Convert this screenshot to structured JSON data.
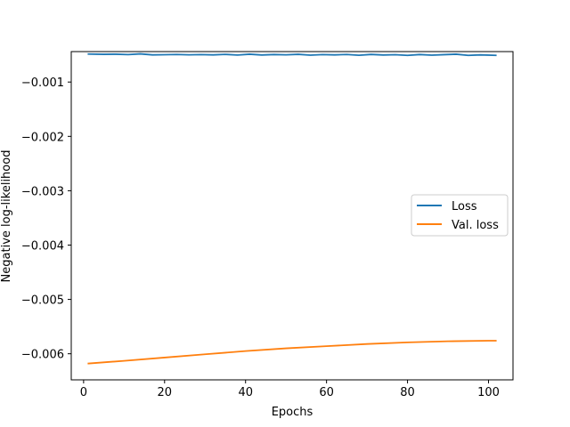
{
  "chart_data": {
    "type": "line",
    "title": "",
    "xlabel": "Epochs",
    "ylabel": "Negative log-likelihood",
    "xlim": [
      -3.05,
      106.05
    ],
    "ylim": [
      -0.00648,
      -0.00044
    ],
    "xticks": [
      0,
      20,
      40,
      60,
      80,
      100
    ],
    "yticks": [
      -0.001,
      -0.002,
      -0.003,
      -0.004,
      -0.005,
      -0.006
    ],
    "xtick_labels": [
      "0",
      "20",
      "40",
      "60",
      "80",
      "100"
    ],
    "ytick_labels": [
      "−0.001",
      "−0.002",
      "−0.003",
      "−0.004",
      "−0.005",
      "−0.006"
    ],
    "grid": false,
    "legend_position": "center-right",
    "series": [
      {
        "name": "Loss",
        "color": "#1f77b4",
        "x": [
          1,
          5,
          8,
          11,
          14,
          17,
          20,
          23,
          26,
          29,
          32,
          35,
          38,
          41,
          44,
          47,
          50,
          53,
          56,
          59,
          62,
          65,
          68,
          71,
          74,
          77,
          80,
          83,
          86,
          89,
          92,
          95,
          98,
          102
        ],
        "y": [
          -0.000485,
          -0.00049,
          -0.000488,
          -0.000495,
          -0.000482,
          -0.0005,
          -0.000497,
          -0.000493,
          -0.000499,
          -0.000495,
          -0.0005,
          -0.000491,
          -0.000503,
          -0.000488,
          -0.000502,
          -0.000494,
          -0.000499,
          -0.00049,
          -0.000505,
          -0.000495,
          -0.0005,
          -0.000493,
          -0.000508,
          -0.000492,
          -0.000502,
          -0.000497,
          -0.00051,
          -0.000494,
          -0.000506,
          -0.000496,
          -0.000488,
          -0.00051,
          -0.0005,
          -0.00051
        ]
      },
      {
        "name": "Val. loss",
        "color": "#ff7f0e",
        "x": [
          1,
          10,
          20,
          30,
          40,
          50,
          60,
          70,
          80,
          90,
          100,
          102
        ],
        "y": [
          -0.00618,
          -0.00613,
          -0.00607,
          -0.00601,
          -0.00595,
          -0.0059,
          -0.00586,
          -0.00582,
          -0.00579,
          -0.00577,
          -0.00576,
          -0.00576
        ]
      }
    ]
  }
}
